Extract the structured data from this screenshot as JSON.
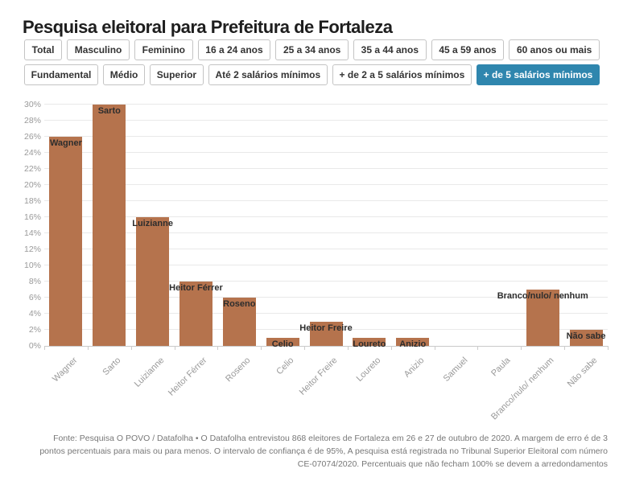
{
  "page": {
    "title": "Pesquisa eleitoral para Prefeitura de Fortaleza"
  },
  "colors": {
    "accent": "#2f86ae",
    "accent_text": "#ffffff",
    "bar": "#b5734d",
    "grid": "#e9e9e9",
    "axis": "#c9c9c9",
    "tick_label": "#9a9a9a",
    "bar_label": "#2d2d2d"
  },
  "filters": {
    "rows": [
      {
        "buttons": [
          {
            "label": "Total",
            "active": false
          },
          {
            "label": "Masculino",
            "active": false
          },
          {
            "label": "Feminino",
            "active": false
          },
          {
            "label": "16 a 24 anos",
            "active": false
          },
          {
            "label": "25 a 34 anos",
            "active": false
          },
          {
            "label": "35 a 44 anos",
            "active": false
          },
          {
            "label": "45 a 59 anos",
            "active": false
          },
          {
            "label": "60 anos ou mais",
            "active": false
          }
        ]
      },
      {
        "buttons": [
          {
            "label": "Fundamental",
            "active": false
          },
          {
            "label": "Médio",
            "active": false
          },
          {
            "label": "Superior",
            "active": false
          },
          {
            "label": "Até 2 salários mínimos",
            "active": false
          },
          {
            "label": "+ de 2 a 5 salários mínimos",
            "active": false
          },
          {
            "label": "+ de 5 salários mínimos",
            "active": true
          }
        ]
      }
    ]
  },
  "chart_data": {
    "type": "bar",
    "title": "",
    "xlabel": "",
    "ylabel": "",
    "categories": [
      "Wagner",
      "Sarto",
      "Luizianne",
      "Heitor Férrer",
      "Roseno",
      "Celio",
      "Heitor Freire",
      "Loureto",
      "Anizio",
      "Samuel",
      "Paula",
      "Branco/nulo/ nenhum",
      "Não sabe"
    ],
    "values": [
      26,
      30,
      16,
      8,
      6,
      1,
      3,
      1,
      1,
      0,
      0,
      7,
      2
    ],
    "value_suffix": "%",
    "ylim": [
      0,
      30
    ],
    "ytick_step": 2,
    "ytick_suffix": "%",
    "grid": true,
    "legend": false,
    "bar_labels": "category names shown at top of each bar when value > 0"
  },
  "footer": {
    "text": "Fonte: Pesquisa O POVO / Datafolha • O Datafolha entrevistou 868 eleitores de Fortaleza em 26 e 27 de outubro de 2020. A margem de erro é de 3 pontos percentuais para mais ou para menos. O intervalo de confiança é de 95%, A pesquisa está registrada no Tribunal Superior Eleitoral com número CE-07074/2020. Percentuais que não fecham 100% se devem a arredondamentos"
  }
}
